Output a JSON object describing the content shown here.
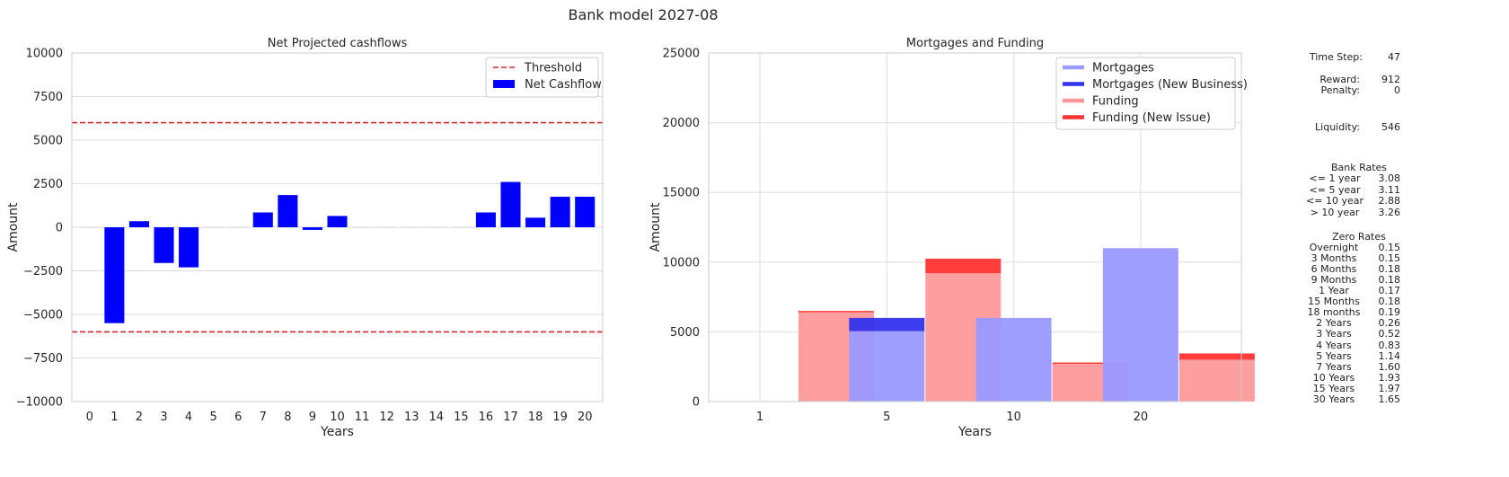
{
  "page": {
    "title": "Bank model 2027-08"
  },
  "chart_data": [
    {
      "type": "bar",
      "title": "Net Projected cashflows",
      "xlabel": "Years",
      "ylabel": "Amount",
      "ylim": [
        -10000,
        10000
      ],
      "yticks": [
        -10000,
        -7500,
        -5000,
        -2500,
        0,
        2500,
        5000,
        7500,
        10000
      ],
      "categories": [
        "0",
        "1",
        "2",
        "3",
        "4",
        "5",
        "6",
        "7",
        "8",
        "9",
        "10",
        "11",
        "12",
        "13",
        "14",
        "15",
        "16",
        "17",
        "18",
        "19",
        "20"
      ],
      "series": [
        {
          "name": "Net Cashflow",
          "color": "#0000ff",
          "values": [
            0,
            -5500,
            350,
            -2050,
            -2300,
            0,
            0,
            850,
            1850,
            -150,
            650,
            0,
            0,
            0,
            0,
            0,
            850,
            2600,
            550,
            1750,
            1750
          ]
        }
      ],
      "thresholds": {
        "name": "Threshold",
        "values": [
          6000,
          -6000
        ],
        "color": "#d62728"
      },
      "grid": true,
      "legend": "top-right"
    },
    {
      "type": "bar",
      "title": "Mortgages and Funding",
      "xlabel": "Years",
      "ylabel": "Amount",
      "ylim": [
        0,
        25000
      ],
      "yticks": [
        0,
        5000,
        10000,
        15000,
        20000,
        25000
      ],
      "categories": [
        "1",
        "5",
        "10",
        "20"
      ],
      "series": [
        {
          "name": "Mortgages",
          "color": "#9999ff",
          "values": [
            0,
            5050,
            6000,
            11000
          ]
        },
        {
          "name": "Mortgages (New Business)",
          "color": "#3333ee",
          "values": [
            0,
            950,
            0,
            0
          ]
        },
        {
          "name": "Funding",
          "color": "#ff9999",
          "values": [
            6400,
            9200,
            2700,
            3000
          ]
        },
        {
          "name": "Funding (New Issue)",
          "color": "#ff3333",
          "values": [
            100,
            1050,
            100,
            450
          ]
        }
      ],
      "stacked": true,
      "grid": true,
      "legend": "top-right"
    }
  ],
  "info": {
    "time_step_label": "Time Step:",
    "time_step": "47",
    "reward_label": "Reward:",
    "reward": "912",
    "penalty_label": "Penalty:",
    "penalty": "0",
    "liquidity_label": "Liquidity:",
    "liquidity": "546",
    "bank_rates_title": "Bank Rates",
    "bank_rates": [
      {
        "label": "<= 1 year",
        "value": "3.08"
      },
      {
        "label": "<= 5 year",
        "value": "3.11"
      },
      {
        "label": "<= 10 year",
        "value": "2.88"
      },
      {
        "label": "> 10 year",
        "value": "3.26"
      }
    ],
    "zero_rates_title": "Zero Rates",
    "zero_rates": [
      {
        "label": "Overnight",
        "value": "0.15"
      },
      {
        "label": "3 Months",
        "value": "0.15"
      },
      {
        "label": "6 Months",
        "value": "0.18"
      },
      {
        "label": "9 Months",
        "value": "0.18"
      },
      {
        "label": "1 Year",
        "value": "0.17"
      },
      {
        "label": "15 Months",
        "value": "0.18"
      },
      {
        "label": "18 months",
        "value": "0.19"
      },
      {
        "label": "2 Years",
        "value": "0.26"
      },
      {
        "label": "3 Years",
        "value": "0.52"
      },
      {
        "label": "4 Years",
        "value": "0.83"
      },
      {
        "label": "5 Years",
        "value": "1.14"
      },
      {
        "label": "7 Years",
        "value": "1.60"
      },
      {
        "label": "10 Years",
        "value": "1.93"
      },
      {
        "label": "15 Years",
        "value": "1.97"
      },
      {
        "label": "30 Years",
        "value": "1.65"
      }
    ]
  }
}
